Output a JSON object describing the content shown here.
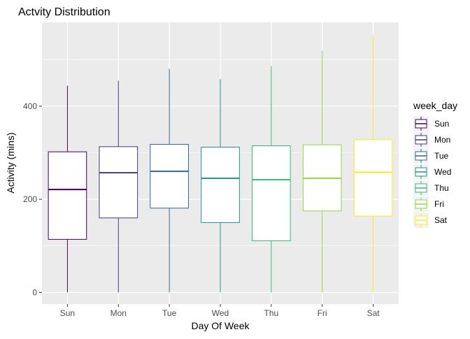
{
  "chart_data": {
    "type": "boxplot",
    "title": "Actvity Distribution",
    "xlabel": "Day Of Week",
    "ylabel": "Activity (mins)",
    "ylim": [
      -25,
      580
    ],
    "y_ticks": [
      0,
      200,
      400
    ],
    "grid": true,
    "legend": {
      "title": "week_day",
      "position": "right"
    },
    "categories": [
      "Sun",
      "Mon",
      "Tue",
      "Wed",
      "Thu",
      "Fri",
      "Sat"
    ],
    "series": [
      {
        "name": "Sun",
        "color": "#440154",
        "min": 0,
        "q1": 114,
        "median": 221,
        "q3": 302,
        "max": 444
      },
      {
        "name": "Mon",
        "color": "#443983",
        "min": 0,
        "q1": 160,
        "median": 257,
        "q3": 313,
        "max": 455
      },
      {
        "name": "Tue",
        "color": "#31688e",
        "min": 0,
        "q1": 181,
        "median": 260,
        "q3": 318,
        "max": 480
      },
      {
        "name": "Wed",
        "color": "#21918c",
        "min": 0,
        "q1": 150,
        "median": 245,
        "q3": 312,
        "max": 458
      },
      {
        "name": "Thu",
        "color": "#35b779",
        "min": 0,
        "q1": 111,
        "median": 242,
        "q3": 315,
        "max": 486
      },
      {
        "name": "Fri",
        "color": "#90d743",
        "min": 0,
        "q1": 175,
        "median": 245,
        "q3": 317,
        "max": 519
      },
      {
        "name": "Sat",
        "color": "#fde725",
        "min": 0,
        "q1": 164,
        "median": 258,
        "q3": 328,
        "max": 552
      }
    ]
  }
}
